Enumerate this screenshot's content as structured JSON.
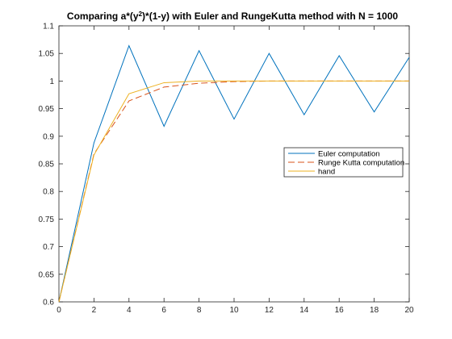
{
  "chart_data": {
    "type": "line",
    "title_main": "Comparing a*(y",
    "title_sup": "2",
    "title_rest": ")*(1-y) with Euler and RungeKutta method with N = 1000",
    "xlabel": "",
    "ylabel": "",
    "xlim": [
      0,
      20
    ],
    "ylim": [
      0.6,
      1.1
    ],
    "xticks": [
      0,
      2,
      4,
      6,
      8,
      10,
      12,
      14,
      16,
      18,
      20
    ],
    "xtick_labels": [
      "0",
      "2",
      "4",
      "6",
      "8",
      "10",
      "12",
      "14",
      "16",
      "18",
      "20"
    ],
    "yticks": [
      0.6,
      0.65,
      0.7,
      0.75,
      0.8,
      0.85,
      0.9,
      0.95,
      1.0,
      1.05,
      1.1
    ],
    "ytick_labels": [
      "0.6",
      "0.65",
      "0.7",
      "0.75",
      "0.8",
      "0.85",
      "0.9",
      "0.95",
      "1",
      "1.05",
      "1.1"
    ],
    "grid": false,
    "legend_position": "right",
    "series": [
      {
        "name": "Euler computation",
        "color": "#0072BD",
        "style": "solid",
        "x": [
          0,
          2,
          4,
          6,
          8,
          10,
          12,
          14,
          16,
          18,
          20
        ],
        "y": [
          0.6,
          0.888,
          1.064,
          0.918,
          1.055,
          0.931,
          1.05,
          0.939,
          1.046,
          0.944,
          1.043
        ]
      },
      {
        "name": "Runge Kutta computation",
        "color": "#D95319",
        "style": "dashed",
        "x": [
          0,
          2,
          4,
          6,
          8,
          10,
          12,
          14,
          16,
          18,
          20
        ],
        "y": [
          0.6,
          0.868,
          0.964,
          0.989,
          0.996,
          0.999,
          1.0,
          1.0,
          1.0,
          1.0,
          1.0
        ]
      },
      {
        "name": "hand",
        "color": "#EDB120",
        "style": "solid",
        "x": [
          0,
          2,
          4,
          6,
          8,
          10,
          12,
          14,
          16,
          18,
          20
        ],
        "y": [
          0.6,
          0.866,
          0.977,
          0.997,
          1.0,
          1.0,
          1.0,
          1.0,
          1.0,
          1.0,
          1.0
        ]
      }
    ]
  }
}
